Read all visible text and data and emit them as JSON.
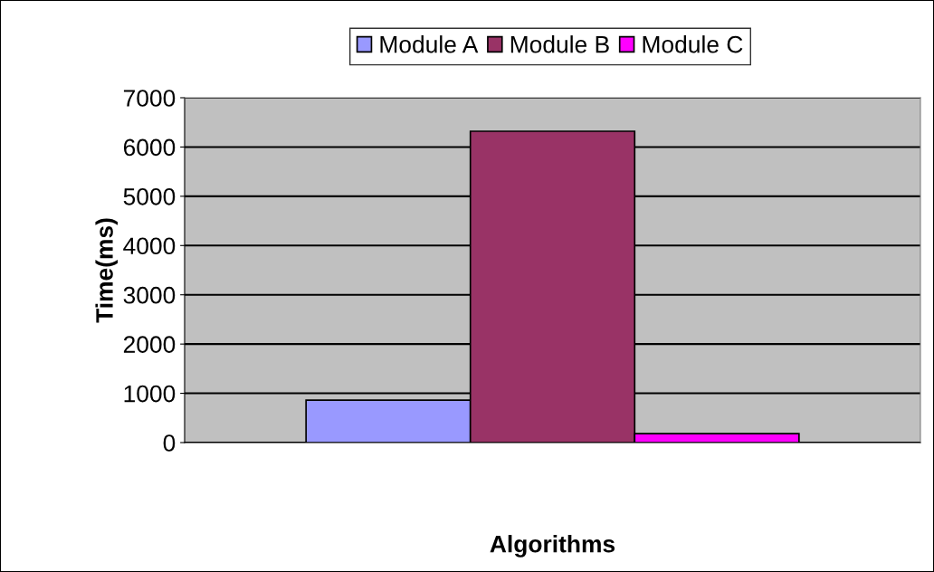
{
  "chart_data": {
    "type": "bar",
    "xlabel": "Algorithms",
    "ylabel": "Time(ms)",
    "categories": [
      null
    ],
    "series": [
      {
        "name": "Module A",
        "color": "#9999ff",
        "values": [
          860
        ]
      },
      {
        "name": "Module B",
        "color": "#993366",
        "values": [
          6320
        ]
      },
      {
        "name": "Module C",
        "color": "#ff00ff",
        "values": [
          180
        ]
      }
    ],
    "ylim": [
      0,
      7000
    ],
    "yticks": [
      0,
      1000,
      2000,
      3000,
      4000,
      5000,
      6000,
      7000
    ],
    "grid": "y",
    "legend": "top"
  }
}
